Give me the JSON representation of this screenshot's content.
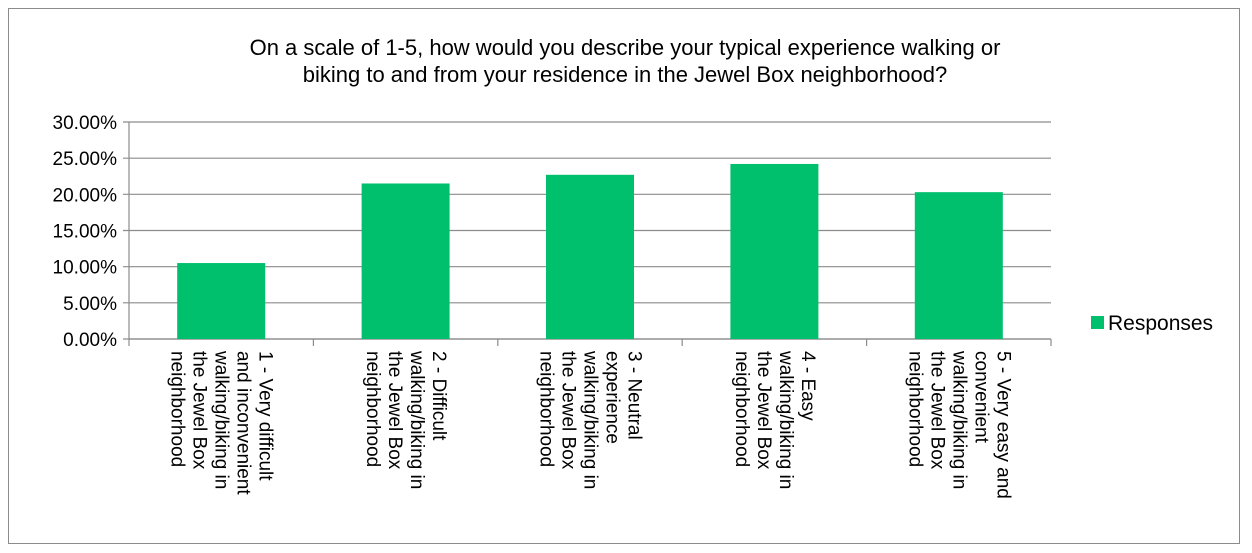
{
  "chart_data": {
    "type": "bar",
    "title_lines": [
      "On a scale of 1-5, how would you describe your typical experience walking or",
      "biking to and from your residence in the Jewel Box neighborhood?"
    ],
    "categories": [
      [
        "1 - Very difficult",
        "and inconvenient",
        "walking/biking in",
        "the Jewel Box",
        "neighborhood"
      ],
      [
        "2 - Difficult",
        "walking/biking in",
        "the Jewel Box",
        "neighborhood"
      ],
      [
        "3 - Neutral",
        "experience",
        "walking/biking in",
        "the Jewel Box",
        "neighborhood"
      ],
      [
        "4 - Easy",
        "walking/biking in",
        "the Jewel Box",
        "neighborhood"
      ],
      [
        "5 - Very easy and",
        "convenient",
        "walking/biking in",
        "the Jewel Box",
        "neighborhood"
      ]
    ],
    "series": [
      {
        "name": "Responses",
        "values": [
          10.5,
          21.5,
          22.7,
          24.2,
          20.3
        ]
      }
    ],
    "y_ticks": [
      "0.00%",
      "5.00%",
      "10.00%",
      "15.00%",
      "20.00%",
      "25.00%",
      "30.00%"
    ],
    "ylim": [
      0,
      30
    ],
    "grid": true,
    "legend_position": "right",
    "colors": {
      "bar": "#00c06e",
      "grid": "#8c8c8c",
      "axis": "#8c8c8c"
    }
  }
}
